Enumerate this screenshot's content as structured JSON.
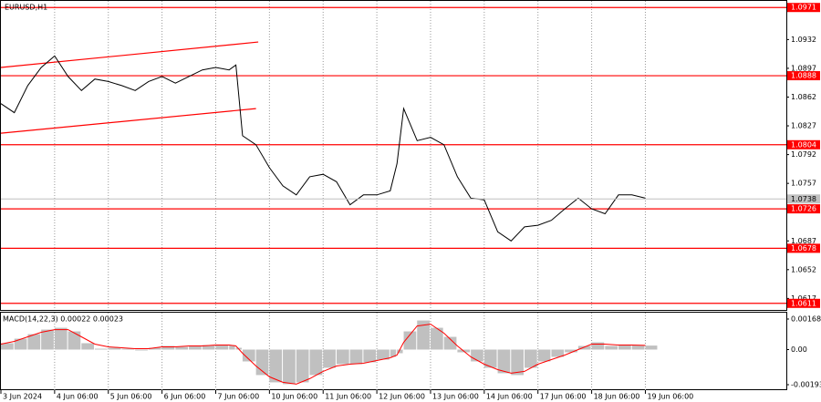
{
  "chart_data": [
    {
      "type": "line",
      "title": "EURUSD,H1",
      "color": "#000000",
      "x": [
        0,
        6,
        12,
        18,
        24,
        30,
        36,
        42,
        48,
        54,
        60,
        66,
        72,
        78,
        84,
        90,
        96,
        102,
        105,
        108,
        114,
        120,
        126,
        132,
        138,
        144,
        150,
        156,
        162,
        168,
        174,
        177,
        180,
        186,
        192,
        198,
        204,
        210,
        216,
        222,
        228,
        234,
        240,
        246,
        252,
        258,
        264,
        270,
        276,
        282,
        288
      ],
      "values": [
        1.0854,
        1.0843,
        1.0876,
        1.0898,
        1.0912,
        1.0887,
        1.087,
        1.0884,
        1.0881,
        1.0876,
        1.087,
        1.0881,
        1.0887,
        1.0879,
        1.0887,
        1.0895,
        1.0898,
        1.0895,
        1.0901,
        1.0815,
        1.0804,
        1.0776,
        1.0754,
        1.0743,
        1.0765,
        1.0768,
        1.0759,
        1.0731,
        1.0743,
        1.0743,
        1.0748,
        1.0781,
        1.0848,
        1.0809,
        1.0813,
        1.0804,
        1.0765,
        1.0739,
        1.0737,
        1.0698,
        1.0687,
        1.0704,
        1.0706,
        1.0712,
        1.0726,
        1.0739,
        1.0726,
        1.072,
        1.0743,
        1.0743,
        1.0739
      ],
      "xlim": [
        0,
        351
      ],
      "xticks": [
        {
          "value": 0,
          "label": "3 Jun 2024"
        },
        {
          "value": 24,
          "label": "4 Jun 06:00"
        },
        {
          "value": 48,
          "label": "5 Jun 06:00"
        },
        {
          "value": 72,
          "label": "6 Jun 06:00"
        },
        {
          "value": 96,
          "label": "7 Jun 06:00"
        },
        {
          "value": 120,
          "label": "10 Jun 06:00"
        },
        {
          "value": 144,
          "label": "11 Jun 06:00"
        },
        {
          "value": 168,
          "label": "12 Jun 06:00"
        },
        {
          "value": 192,
          "label": "13 Jun 06:00"
        },
        {
          "value": 216,
          "label": "14 Jun 06:00"
        },
        {
          "value": 240,
          "label": "17 Jun 06:00"
        },
        {
          "value": 264,
          "label": "18 Jun 06:00"
        },
        {
          "value": 288,
          "label": "19 Jun 06:00"
        }
      ],
      "ylim": [
        1.0603,
        1.0979
      ],
      "yticks": [
        1.0932,
        1.0897,
        1.0862,
        1.0827,
        1.0792,
        1.0757,
        1.0687,
        1.0652,
        1.0617
      ],
      "grid": true,
      "levels": [
        1.0971,
        1.0888,
        1.0804,
        1.0726,
        1.0678,
        1.0611
      ],
      "level_color": "#ff0000",
      "last_price": 1.0738,
      "channel_lines": [
        {
          "x": [
            0,
            115
          ],
          "y": [
            1.0898,
            1.0929
          ]
        },
        {
          "x": [
            0,
            114
          ],
          "y": [
            1.0818,
            1.0848
          ]
        }
      ]
    },
    {
      "type": "macd",
      "title": "MACD(14,22,3) 0.00022 0.00023",
      "x": [
        0,
        6,
        12,
        18,
        24,
        30,
        36,
        42,
        48,
        54,
        60,
        66,
        72,
        78,
        84,
        90,
        96,
        102,
        105,
        108,
        114,
        120,
        126,
        132,
        138,
        144,
        150,
        156,
        162,
        168,
        174,
        177,
        180,
        186,
        192,
        198,
        204,
        210,
        216,
        222,
        228,
        234,
        240,
        246,
        252,
        258,
        264,
        270,
        276,
        282,
        288
      ],
      "series": [
        {
          "type": "bar",
          "color": "#c0c0c0",
          "values": [
            0.00035,
            0.0006,
            0.00085,
            0.0011,
            0.0012,
            0.001,
            0.00035,
            5e-05,
            0.0001,
            5e-05,
            -5e-05,
            0.0001,
            0.0002,
            0.00015,
            0.0002,
            0.00025,
            0.00025,
            0.00025,
            0.0001,
            -0.00065,
            -0.0014,
            -0.0018,
            -0.0019,
            -0.0018,
            -0.0014,
            -0.001,
            -0.0008,
            -0.0008,
            -0.0007,
            -0.00055,
            -0.0004,
            -0.0002,
            0.001,
            0.0016,
            0.0012,
            0.0007,
            -0.00015,
            -0.00065,
            -0.001,
            -0.0013,
            -0.0014,
            -0.001,
            -0.00065,
            -0.0004,
            -0.00015,
            0.0002,
            0.0004,
            0.0002,
            0.00025,
            0.00025,
            0.00022
          ]
        },
        {
          "type": "line",
          "color": "#ff0000",
          "values": [
            0.0003,
            0.00045,
            0.0007,
            0.00095,
            0.0011,
            0.0011,
            0.0007,
            0.0003,
            0.00015,
            0.0001,
            5e-05,
            5e-05,
            0.00015,
            0.00015,
            0.0002,
            0.0002,
            0.00025,
            0.00025,
            0.0002,
            -0.0002,
            -0.0009,
            -0.0015,
            -0.0018,
            -0.0019,
            -0.0016,
            -0.0012,
            -0.0009,
            -0.0008,
            -0.00075,
            -0.0006,
            -0.00045,
            -0.0003,
            0.0004,
            0.0013,
            0.0014,
            0.0009,
            0.0002,
            -0.0004,
            -0.0008,
            -0.0011,
            -0.0013,
            -0.0012,
            -0.0008,
            -0.00055,
            -0.0003,
            0,
            0.0003,
            0.0003,
            0.00025,
            0.00025,
            0.00023
          ]
        }
      ],
      "xlim": [
        0,
        351
      ],
      "ylim": [
        -0.00223,
        0.00203
      ],
      "yticks": [
        0.00168,
        {
          "value": 0,
          "label": "0.00"
        },
        -0.00193
      ]
    }
  ]
}
